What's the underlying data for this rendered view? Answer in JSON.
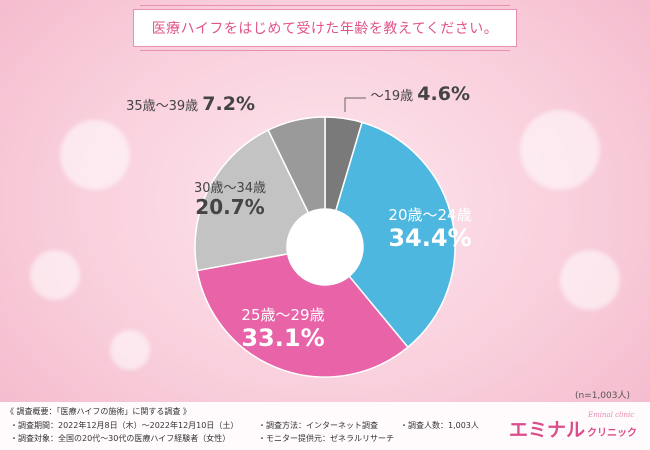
{
  "title": "医療ハイフをはじめて受けた年齢を教えてください。",
  "sample_note": "(n=1,003人)",
  "chart_data": {
    "type": "pie",
    "style": "donut",
    "order": "clockwise from top",
    "slices": [
      {
        "label": "～19歳",
        "value": 4.6,
        "value_label": "4.6%",
        "color": "#7a7a7a"
      },
      {
        "label": "20歳～24歳",
        "value": 34.4,
        "value_label": "34.4%",
        "color": "#4db7df"
      },
      {
        "label": "25歳～29歳",
        "value": 33.1,
        "value_label": "33.1%",
        "color": "#e863a8"
      },
      {
        "label": "30歳～34歳",
        "value": 20.7,
        "value_label": "20.7%",
        "color": "#c3c3c3"
      },
      {
        "label": "35歳～39歳",
        "value": 7.2,
        "value_label": "7.2%",
        "color": "#9a9a9a"
      }
    ]
  },
  "footer": {
    "survey_title": "《 調査概要：「医療ハイフの施術」に関する調査 》",
    "period": "・調査期間：2022年12月8日（木）～2022年12月10日（土）",
    "target": "・調査対象：全国の20代～30代の医療ハイフ経験者（女性）",
    "method": "・調査方法：インターネット調査",
    "provider": "・モニター提供元：ゼネラルリサーチ",
    "count": "・調査人数：1,003人"
  },
  "logo": {
    "main": "エミナル",
    "sub": "クリニック",
    "small": "Eminal clinic"
  }
}
